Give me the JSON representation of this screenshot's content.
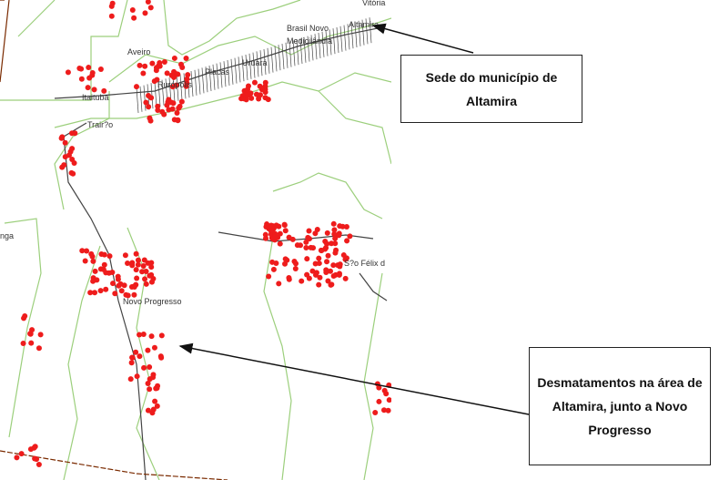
{
  "map": {
    "place_labels": [
      "Vitória",
      "Altamira",
      "Brasil Novo",
      "Medicilândia",
      "Uruará",
      "Placas",
      "Rurópolis",
      "Aveiro",
      "Itaituba",
      "Trair?o",
      "nga",
      "Novo Progresso",
      "S?o Félix d"
    ],
    "colors": {
      "deforestation": "#ee1c1c",
      "boundaries": "#9ccf7c",
      "roads": "#444444",
      "rivers": "#333333"
    }
  },
  "callouts": {
    "sede": "Sede do município de Altamira",
    "desmatamentos": "Desmatamentos na área de Altamira, junto a Novo Progresso"
  }
}
